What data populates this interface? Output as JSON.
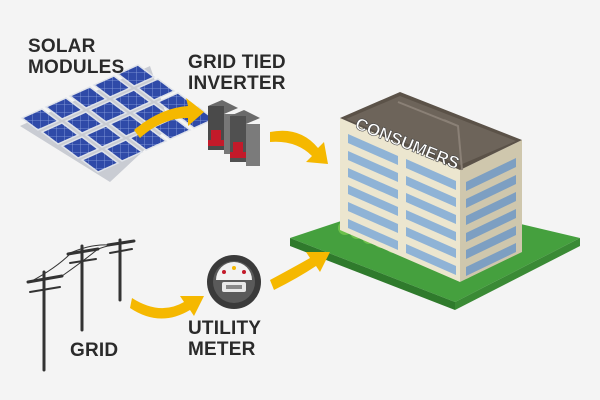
{
  "labels": {
    "solar_line1": "SOLAR",
    "solar_line2": "MODULES",
    "inverter_line1": "GRID TIED",
    "inverter_line2": "INVERTER",
    "grid": "GRID",
    "meter_line1": "UTILITY",
    "meter_line2": "METER",
    "consumers": "CONSUMERS"
  },
  "colors": {
    "arrow": "#f5b800",
    "panel": "#2f4aa8",
    "lawn": "#3f9b3a",
    "building": "#ece6cf",
    "window": "#8fb3d6",
    "text": "#2a2a2a"
  }
}
